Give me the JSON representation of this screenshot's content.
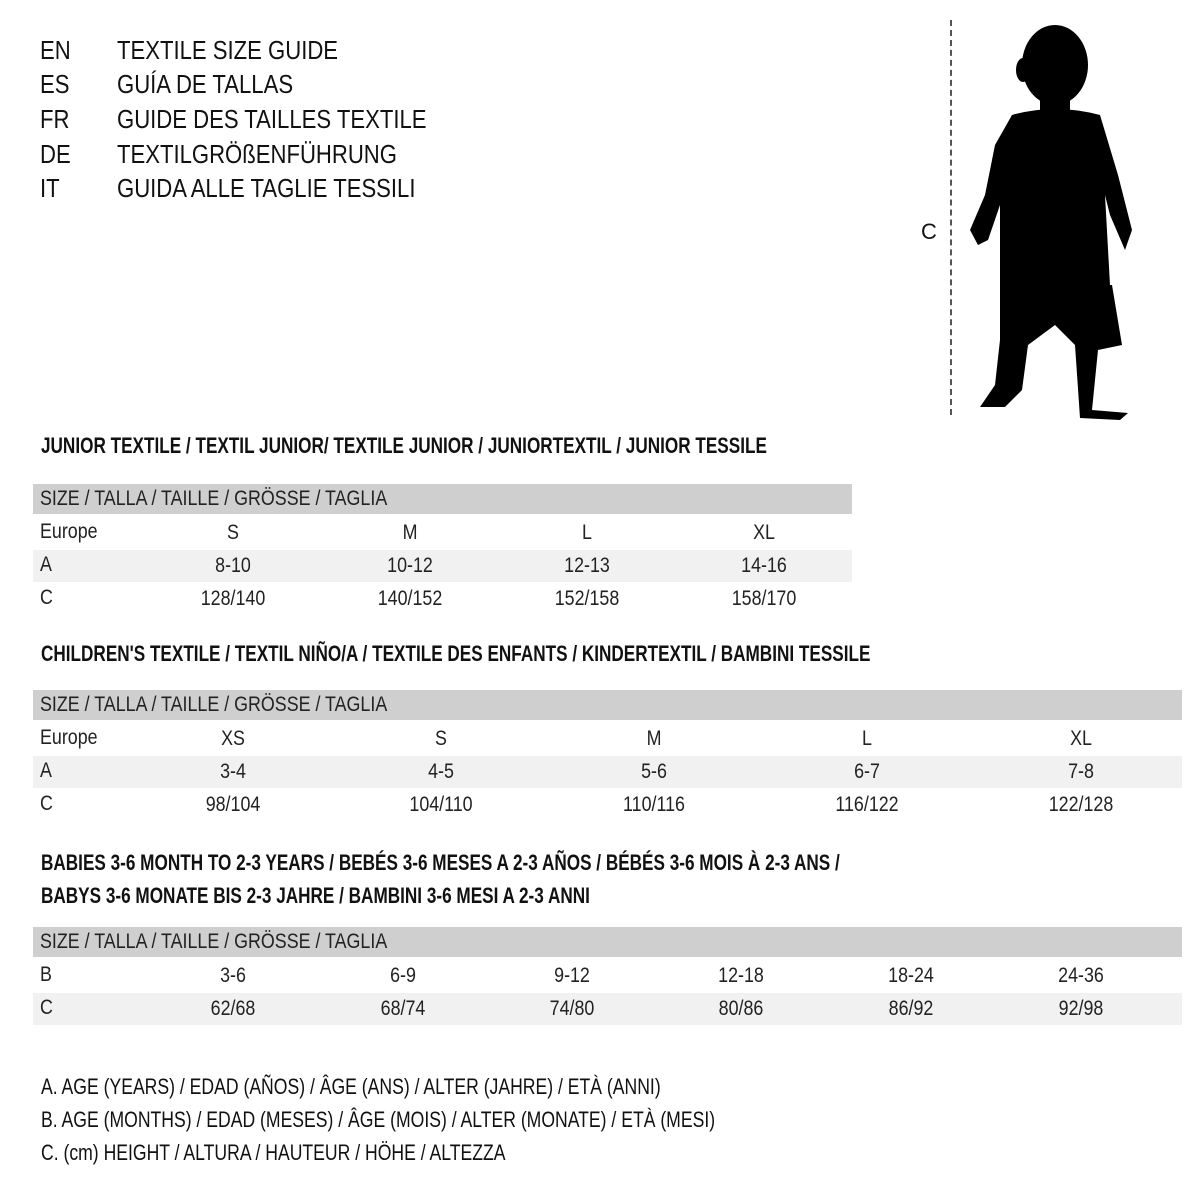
{
  "titles": [
    {
      "lang": "EN",
      "text": "TEXTILE SIZE GUIDE"
    },
    {
      "lang": "ES",
      "text": "GUÍA DE TALLAS"
    },
    {
      "lang": "FR",
      "text": "GUIDE DES TAILLES TEXTILE"
    },
    {
      "lang": "DE",
      "text": "TEXTILGRÖßENFÜHRUNG"
    },
    {
      "lang": "IT",
      "text": "GUIDA ALLE TAGLIE TESSILI"
    }
  ],
  "figure": {
    "measure_label": "C"
  },
  "sections": [
    {
      "title": "JUNIOR TEXTILE / TEXTIL JUNIOR/ TEXTILE JUNIOR / JUNIORTEXTIL / JUNIOR TESSILE",
      "header": "SIZE / TALLA / TAILLE / GRÖSSE / TAGLIA",
      "rows": [
        {
          "label": "Europe",
          "values": [
            "S",
            "M",
            "L",
            "XL"
          ]
        },
        {
          "label": "A",
          "values": [
            "8-10",
            "10-12",
            "12-13",
            "14-16"
          ]
        },
        {
          "label": "C",
          "values": [
            "128/140",
            "140/152",
            "152/158",
            "158/170"
          ]
        }
      ]
    },
    {
      "title": "CHILDREN'S TEXTILE / TEXTIL NIÑO/A / TEXTILE DES ENFANTS / KINDERTEXTIL / BAMBINI TESSILE",
      "header": "SIZE / TALLA / TAILLE / GRÖSSE / TAGLIA",
      "rows": [
        {
          "label": "Europe",
          "values": [
            "XS",
            "S",
            "M",
            "L",
            "XL"
          ]
        },
        {
          "label": "A",
          "values": [
            "3-4",
            "4-5",
            "5-6",
            "6-7",
            "7-8"
          ]
        },
        {
          "label": "C",
          "values": [
            "98/104",
            "104/110",
            "110/116",
            "116/122",
            "122/128"
          ]
        }
      ]
    },
    {
      "title": "BABIES 3-6 MONTH TO 2-3 YEARS / BEBÉS 3-6 MESES A 2-3 AÑOS / BÉBÉS 3-6 MOIS À 2-3 ANS /",
      "title2": "BABYS 3-6 MONATE BIS 2-3 JAHRE / BAMBINI 3-6 MESI A 2-3 ANNI",
      "header": "SIZE / TALLA / TAILLE / GRÖSSE / TAGLIA",
      "rows": [
        {
          "label": "B",
          "values": [
            "3-6",
            "6-9",
            "9-12",
            "12-18",
            "18-24",
            "24-36"
          ]
        },
        {
          "label": "C",
          "values": [
            "62/68",
            "68/74",
            "74/80",
            "80/86",
            "86/92",
            "92/98"
          ]
        }
      ]
    }
  ],
  "legend": [
    "A. AGE (YEARS) / EDAD (AÑOS) / ÂGE (ANS) / ALTER (JAHRE) / ETÀ (ANNI)",
    "B. AGE (MONTHS) / EDAD (MESES) / ÂGE (MOIS) / ALTER (MONATE) / ETÀ (MESI)",
    "C. (cm) HEIGHT / ALTURA / HAUTEUR / HÖHE / ALTEZZA"
  ]
}
